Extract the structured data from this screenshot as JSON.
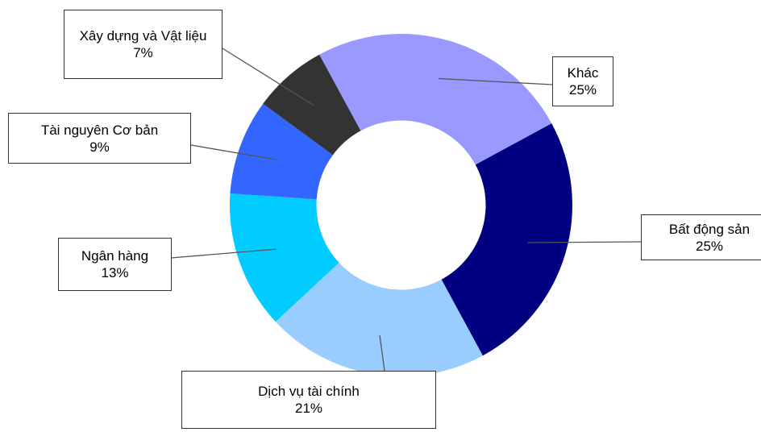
{
  "chart_data": {
    "type": "donut",
    "categories": [
      "Khác",
      "Bất động sản",
      "Dịch vụ tài chính",
      "Ngân hàng",
      "Tài nguyên Cơ bản",
      "Xây dựng và Vật liệu"
    ],
    "values": [
      25,
      25,
      21,
      13,
      9,
      7
    ],
    "value_labels": [
      "25%",
      "25%",
      "21%",
      "13%",
      "9%",
      "7%"
    ],
    "colors": [
      "#9999ff",
      "#000080",
      "#99ccff",
      "#00ccff",
      "#3366ff",
      "#333333"
    ]
  }
}
